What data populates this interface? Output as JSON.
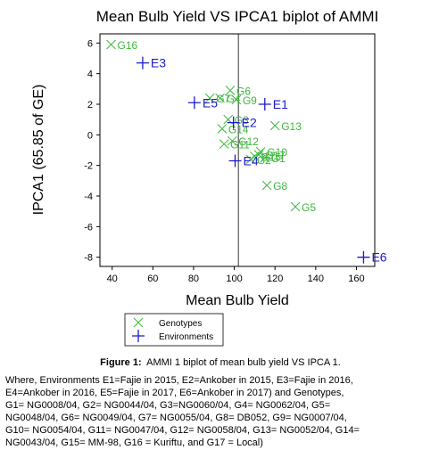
{
  "chart_data": {
    "type": "scatter",
    "title": "Mean Bulb Yield  VS  IPCA1 biplot of AMMI",
    "x_label": "Mean Bulb Yield",
    "y_label": "IPCA1 (65.85 of GE)",
    "xlim": [
      34,
      169
    ],
    "ylim": [
      -8.6,
      6.6
    ],
    "xticks": [
      40,
      60,
      80,
      100,
      120,
      140,
      160
    ],
    "yticks": [
      6,
      4,
      2,
      0,
      -2,
      -4,
      -6,
      -8
    ],
    "vline": 102,
    "series": [
      {
        "name": "Genotypes",
        "color": "#3cb83c",
        "marker": "x",
        "labels": [
          "G1",
          "G2",
          "G3",
          "G4",
          "G5",
          "G6",
          "G7",
          "G8",
          "G9",
          "G10",
          "G11",
          "G12",
          "G13",
          "G14",
          "G15",
          "G16",
          "G17"
        ],
        "x": [
          115,
          108,
          97,
          93,
          130,
          98,
          88,
          116,
          101,
          113,
          95,
          99,
          120,
          94,
          110,
          39.5,
          112
        ],
        "values": [
          -1.5,
          -1.6,
          1.0,
          2.4,
          -4.7,
          2.9,
          2.4,
          -3.3,
          2.3,
          -1.1,
          -0.6,
          -0.4,
          0.6,
          0.4,
          -1.4,
          5.9,
          -1.3
        ]
      },
      {
        "name": "Environments",
        "color": "#1a1acc",
        "marker": "+",
        "labels": [
          "E1",
          "E2",
          "E3",
          "E4",
          "E5",
          "E6"
        ],
        "x": [
          115,
          99.6,
          55,
          100.4,
          80.4,
          163.5
        ],
        "values": [
          2.0,
          0.8,
          4.7,
          -1.7,
          2.1,
          -8.0
        ]
      }
    ],
    "caption": {
      "label": "Figure 1:",
      "text": "AMMI 1 biplot of mean bulb yield VS IPCA 1.",
      "note_lines": [
        "Where, Environments E1=Fajie in 2015,  E2=Ankober in 2015,  E3=Fajie in 2016,",
        "E4=Ankober in 2016,  E5=Fajie in 2017,   E6=Ankober in 2017) and Genotypes,",
        "G1=  NG0008/04,  G2=  NG0044/04,  G3=NG0060/04,  G4=  NG0062/04,  G5=",
        "NG0048/04, G6= NG0049/04, G7= NG0055/04, G8= DB052, G9= NG0007/04,",
        "G10= NG0054/04, G11= NG0047/04, G12= NG0058/04, G13= NG0052/04, G14=",
        "NG0043/04, G15= MM-98, G16 = Kuriftu, and G17 = Local)"
      ]
    }
  }
}
